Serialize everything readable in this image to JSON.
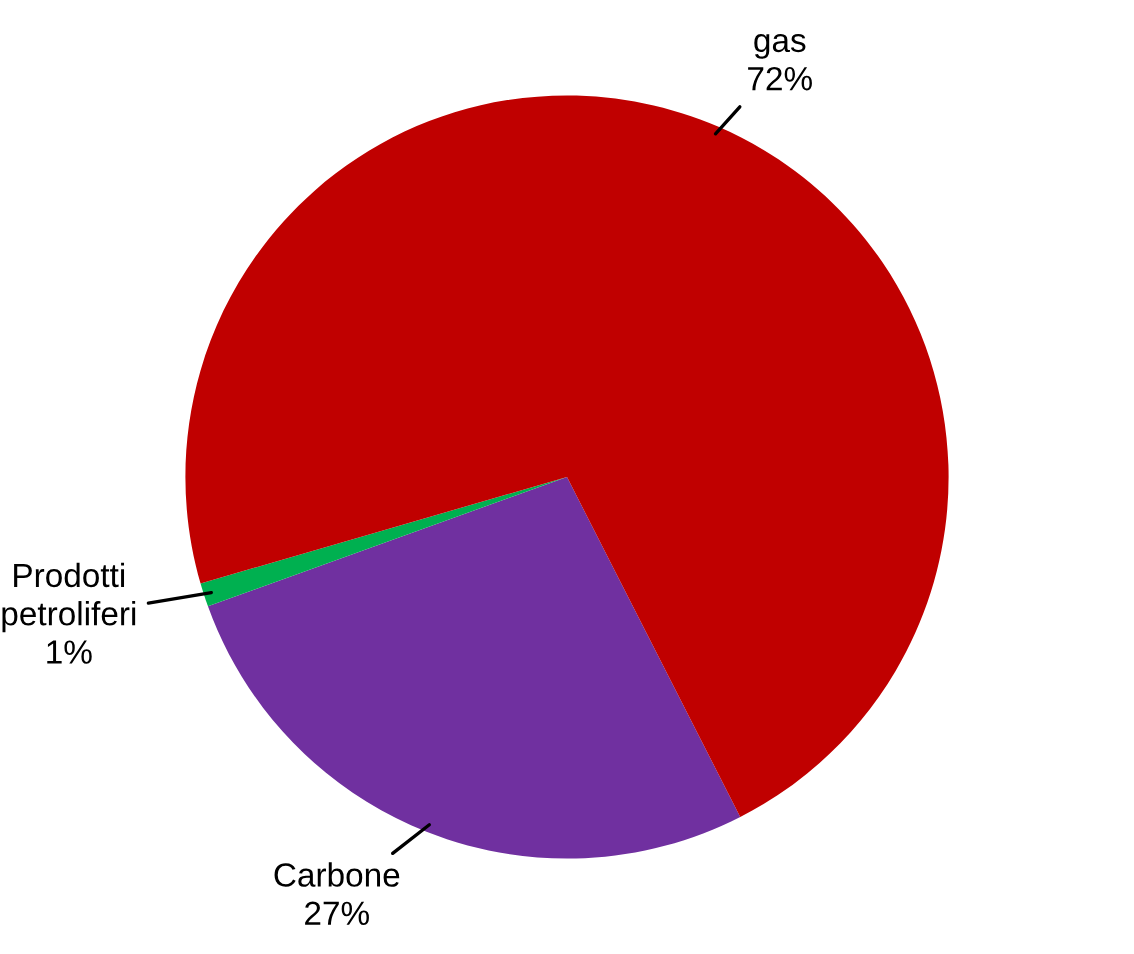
{
  "chart_data": {
    "type": "pie",
    "categories": [
      "Carbone",
      "Prodotti petroliferi",
      "gas"
    ],
    "values": [
      27,
      1,
      72
    ],
    "colors": [
      "#7030a0",
      "#00b050",
      "#c00000"
    ],
    "value_labels": [
      "27%",
      "1%",
      "72%"
    ]
  }
}
